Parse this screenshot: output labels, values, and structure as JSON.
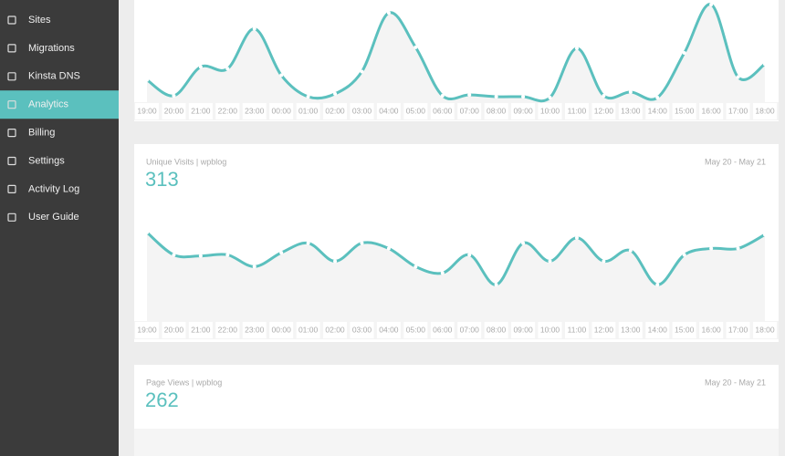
{
  "sidebar": {
    "items": [
      "Sites",
      "Migrations",
      "Kinsta DNS",
      "Analytics",
      "Billing",
      "Settings",
      "Activity Log",
      "User Guide"
    ],
    "active": "Analytics"
  },
  "hours": [
    "19:00",
    "20:00",
    "21:00",
    "22:00",
    "23:00",
    "00:00",
    "01:00",
    "02:00",
    "03:00",
    "04:00",
    "05:00",
    "06:00",
    "07:00",
    "08:00",
    "09:00",
    "10:00",
    "11:00",
    "12:00",
    "13:00",
    "14:00",
    "15:00",
    "16:00",
    "17:00",
    "18:00"
  ],
  "line_color": "#5bc0be",
  "panels": [
    {
      "values": [
        19,
        2,
        33,
        31,
        74,
        24,
        1,
        4,
        28,
        91,
        54,
        2,
        3,
        1,
        1,
        0,
        53,
        2,
        6,
        0,
        48,
        100,
        22,
        36
      ]
    },
    {
      "title": "Unique Visits | wpblog",
      "date_range": "May 20 - May 21",
      "total": 313,
      "values": [
        83,
        62,
        61,
        62,
        51,
        64,
        73,
        56,
        73,
        68,
        51,
        45,
        62,
        34,
        73,
        56,
        78,
        56,
        66,
        34,
        62,
        68,
        68,
        81
      ]
    },
    {
      "title": "Page Views | wpblog",
      "date_range": "May 20 - May 21",
      "total": 262
    }
  ]
}
